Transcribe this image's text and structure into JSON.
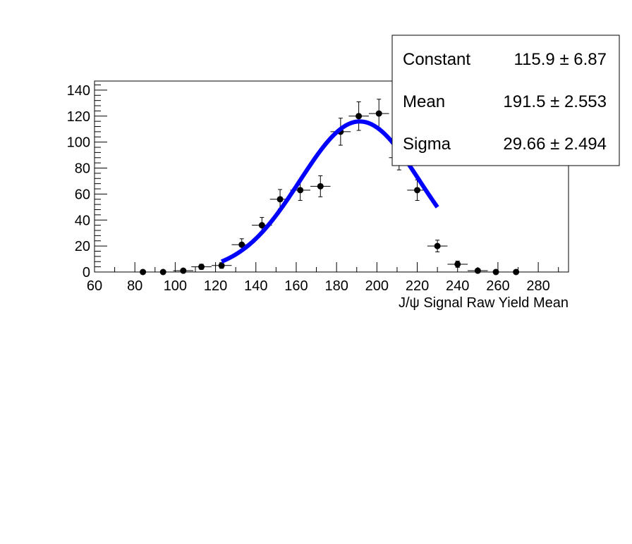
{
  "chart_data": {
    "type": "scatter",
    "xlabel": "J/ψ Signal Raw Yield Mean",
    "ylabel": "",
    "xlim": [
      60,
      295
    ],
    "ylim": [
      0,
      147
    ],
    "x_ticks": [
      60,
      80,
      100,
      120,
      140,
      160,
      180,
      200,
      220,
      240,
      260,
      280
    ],
    "y_ticks": [
      0,
      20,
      40,
      60,
      80,
      100,
      120,
      140
    ],
    "grid": false,
    "colors": {
      "points": "#000000",
      "fit": "#0000ff"
    },
    "points": [
      {
        "x": 84,
        "y": 0,
        "yerr": 0
      },
      {
        "x": 94,
        "y": 0,
        "yerr": 0
      },
      {
        "x": 104,
        "y": 1,
        "yerr": 1
      },
      {
        "x": 113,
        "y": 4,
        "yerr": 2
      },
      {
        "x": 123,
        "y": 5,
        "yerr": 2.2
      },
      {
        "x": 133,
        "y": 21,
        "yerr": 4.6
      },
      {
        "x": 143,
        "y": 36,
        "yerr": 6
      },
      {
        "x": 152,
        "y": 56,
        "yerr": 7.5
      },
      {
        "x": 162,
        "y": 63,
        "yerr": 7.9
      },
      {
        "x": 172,
        "y": 66,
        "yerr": 8.1
      },
      {
        "x": 182,
        "y": 108,
        "yerr": 10.4
      },
      {
        "x": 191,
        "y": 120,
        "yerr": 11
      },
      {
        "x": 201,
        "y": 122,
        "yerr": 11
      },
      {
        "x": 211,
        "y": 88,
        "yerr": 9.4
      },
      {
        "x": 220,
        "y": 63,
        "yerr": 7.9
      },
      {
        "x": 230,
        "y": 20,
        "yerr": 4.5
      },
      {
        "x": 240,
        "y": 6,
        "yerr": 2.4
      },
      {
        "x": 250,
        "y": 1,
        "yerr": 1
      },
      {
        "x": 259,
        "y": 0,
        "yerr": 0
      },
      {
        "x": 269,
        "y": 0,
        "yerr": 0
      }
    ],
    "xerr": 5,
    "fit": {
      "function": "gaus",
      "range": [
        123,
        230
      ],
      "constant": 115.9,
      "mean": 191.5,
      "sigma": 29.66
    }
  },
  "stats": {
    "rows": [
      {
        "name": "Constant",
        "value": "115.9 ±  6.87"
      },
      {
        "name": "Mean",
        "value": "191.5 ± 2.553"
      },
      {
        "name": "Sigma",
        "value": "29.66 ± 2.494"
      }
    ]
  }
}
